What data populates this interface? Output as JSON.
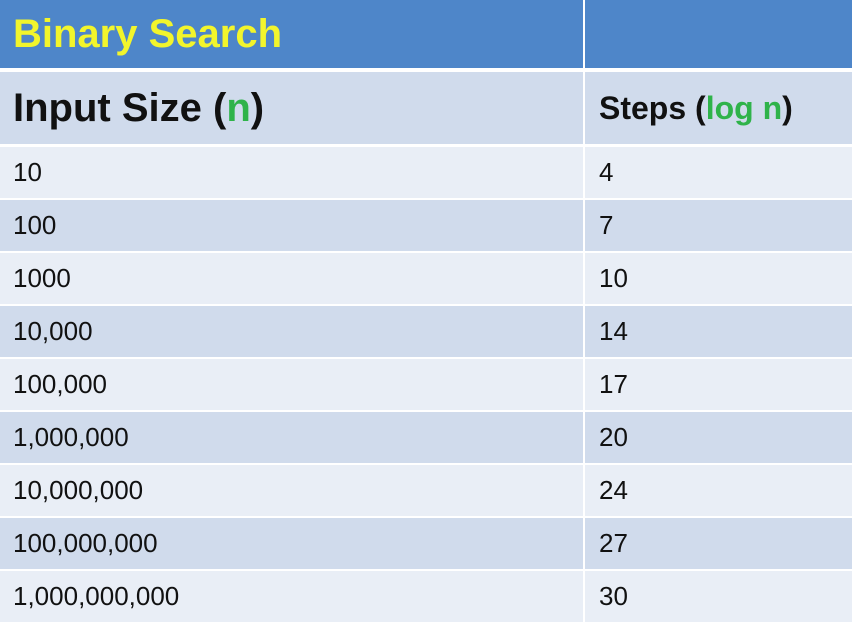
{
  "title": "Binary Search",
  "header": {
    "col1_prefix": "Input Size (",
    "col1_var": "n",
    "col1_suffix": ")",
    "col2_prefix": "Steps (",
    "col2_var": "log n",
    "col2_suffix": ")"
  },
  "rows": [
    {
      "input": "10",
      "steps": "4"
    },
    {
      "input": "100",
      "steps": "7"
    },
    {
      "input": "1000",
      "steps": "10"
    },
    {
      "input": "10,000",
      "steps": "14"
    },
    {
      "input": "100,000",
      "steps": "17"
    },
    {
      "input": "1,000,000",
      "steps": "20"
    },
    {
      "input": "10,000,000",
      "steps": "24"
    },
    {
      "input": "100,000,000",
      "steps": "27"
    },
    {
      "input": "1,000,000,000",
      "steps": "30"
    }
  ],
  "colors": {
    "title_bg": "#4e86c9",
    "title_text": "#f2f52c",
    "row_dark": "#d0dbec",
    "row_light": "#e9eef6",
    "accent": "#2fb34a"
  }
}
